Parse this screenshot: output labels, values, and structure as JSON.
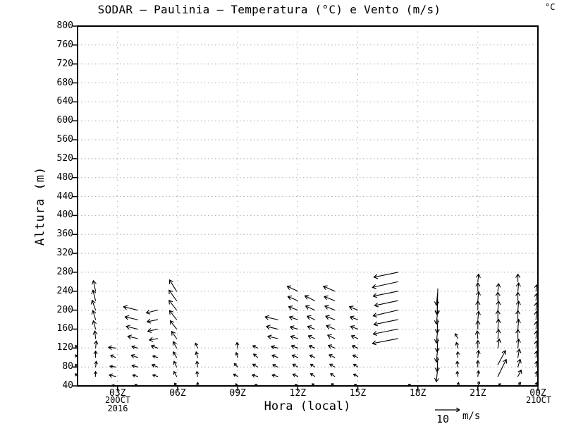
{
  "title": "SODAR – Paulinia – Temperatura (°C) e Vento (m/s)",
  "temperature_unit": "°C",
  "colors": {
    "background": "#ffffff",
    "foreground": "#000000",
    "grid": "#ababab"
  },
  "chart_data": {
    "type": "vector",
    "subtype": "time-height wind vector field (SODAR)",
    "xlabel": "Hora (local)",
    "ylabel": "Altura (m)",
    "x_range_hours": [
      1,
      24
    ],
    "ylim": [
      40,
      800
    ],
    "y_tick_step": 40,
    "grid": "dashed",
    "y_tick_labels": [
      "800",
      "760",
      "720",
      "680",
      "640",
      "600",
      "560",
      "520",
      "480",
      "440",
      "400",
      "360",
      "320",
      "280",
      "240",
      "200",
      "160",
      "120",
      "80",
      "40"
    ],
    "x_ticks": [
      {
        "label": "03Z",
        "hour": 3
      },
      {
        "label": "06Z",
        "hour": 6
      },
      {
        "label": "09Z",
        "hour": 9
      },
      {
        "label": "12Z",
        "hour": 12
      },
      {
        "label": "15Z",
        "hour": 15
      },
      {
        "label": "18Z",
        "hour": 18
      },
      {
        "label": "21Z",
        "hour": 21
      },
      {
        "label": "00Z",
        "hour": 24
      }
    ],
    "x_grid_hours": [
      3,
      6,
      9,
      12,
      15,
      18,
      21
    ],
    "start_date_line1": "20OCT",
    "start_date_line2": "2016",
    "end_date_label": "21OCT",
    "wind_unit": "m/s",
    "reference_arrow": {
      "value": "10",
      "unit": "m/s",
      "speed_ms": 10
    },
    "columns": [
      {
        "t": 1.0,
        "arrows": [
          [
            60,
            -0.9,
            1.1
          ],
          [
            80,
            -0.9,
            1.1
          ],
          [
            100,
            -0.9,
            1.1
          ],
          [
            120,
            -0.9,
            1.1
          ]
        ]
      },
      {
        "t": 1.9,
        "arrows": [
          [
            60,
            0,
            2.0
          ],
          [
            80,
            0.3,
            2.3
          ],
          [
            100,
            0,
            2.6
          ],
          [
            120,
            0.3,
            2.9
          ],
          [
            140,
            -0.3,
            3.1
          ],
          [
            160,
            -0.9,
            3.4
          ],
          [
            180,
            -1.1,
            3.7
          ],
          [
            200,
            -1.4,
            4.0
          ],
          [
            220,
            -1.1,
            4.3
          ],
          [
            240,
            -0.9,
            4.3
          ]
        ]
      },
      {
        "t": 2.9,
        "arrows": [
          [
            40,
            -1.4,
            0.3
          ],
          [
            60,
            -2.6,
            0.6
          ],
          [
            80,
            -2.3,
            0.3
          ],
          [
            100,
            -2.0,
            0.9
          ],
          [
            120,
            -2.9,
            0.3
          ]
        ]
      },
      {
        "t": 4.0,
        "arrows": [
          [
            40,
            -1.1,
            0.6
          ],
          [
            60,
            -2.0,
            0.6
          ],
          [
            80,
            -2.3,
            0.6
          ],
          [
            100,
            -2.6,
            0.9
          ],
          [
            120,
            -2.3,
            0.6
          ],
          [
            140,
            -4.0,
            0.9
          ],
          [
            160,
            -4.6,
            1.1
          ],
          [
            180,
            -5.1,
            1.1
          ],
          [
            200,
            -5.7,
            1.4
          ]
        ]
      },
      {
        "t": 5.0,
        "arrows": [
          [
            60,
            -2.0,
            0.6
          ],
          [
            80,
            -2.3,
            0.9
          ],
          [
            100,
            -2.0,
            0.6
          ],
          [
            120,
            -2.6,
            0.9
          ],
          [
            140,
            -3.4,
            -0.6
          ],
          [
            160,
            -4.0,
            -0.9
          ],
          [
            180,
            -4.3,
            -0.9
          ],
          [
            200,
            -4.6,
            -1.1
          ]
        ]
      },
      {
        "t": 5.95,
        "arrows": [
          [
            40,
            -0.9,
            1.1
          ],
          [
            60,
            -1.1,
            2.0
          ],
          [
            80,
            -1.1,
            2.3
          ],
          [
            100,
            -1.4,
            2.3
          ],
          [
            120,
            -1.4,
            2.6
          ],
          [
            140,
            -2.0,
            2.9
          ],
          [
            160,
            -2.6,
            3.4
          ],
          [
            180,
            -2.9,
            3.7
          ],
          [
            200,
            -3.1,
            4.0
          ],
          [
            220,
            -3.1,
            4.3
          ],
          [
            240,
            -2.9,
            4.6
          ]
        ]
      },
      {
        "t": 7.0,
        "arrows": [
          [
            40,
            0,
            1.4
          ],
          [
            60,
            -0.3,
            2.0
          ],
          [
            80,
            -0.3,
            2.3
          ],
          [
            100,
            -0.6,
            2.3
          ],
          [
            120,
            -0.9,
            2.0
          ]
        ]
      },
      {
        "t": 9.0,
        "arrows": [
          [
            40,
            -0.9,
            0.9
          ],
          [
            60,
            -1.7,
            0.9
          ],
          [
            80,
            -1.4,
            1.4
          ],
          [
            100,
            -0.6,
            2.0
          ],
          [
            120,
            -0.3,
            2.3
          ]
        ]
      },
      {
        "t": 10.0,
        "arrows": [
          [
            40,
            -1.1,
            0.6
          ],
          [
            60,
            -2.3,
            0.6
          ],
          [
            80,
            -2.0,
            1.1
          ],
          [
            100,
            -1.7,
            1.4
          ],
          [
            120,
            -2.0,
            0.9
          ]
        ]
      },
      {
        "t": 11.0,
        "arrows": [
          [
            60,
            -2.3,
            0.6
          ],
          [
            80,
            -2.0,
            0.9
          ],
          [
            100,
            -2.3,
            0.9
          ],
          [
            120,
            -2.6,
            0.6
          ],
          [
            140,
            -4.0,
            0.9
          ],
          [
            160,
            -4.6,
            1.1
          ],
          [
            180,
            -5.1,
            1.1
          ]
        ]
      },
      {
        "t": 12.0,
        "arrows": [
          [
            40,
            -1.1,
            0.6
          ],
          [
            60,
            -2.0,
            0.9
          ],
          [
            80,
            -2.0,
            1.1
          ],
          [
            100,
            -2.3,
            0.9
          ],
          [
            120,
            -2.6,
            0.9
          ],
          [
            140,
            -2.9,
            0.9
          ],
          [
            160,
            -3.1,
            0.9
          ],
          [
            180,
            -3.4,
            1.1
          ],
          [
            200,
            -3.7,
            1.4
          ],
          [
            220,
            -4.0,
            1.7
          ],
          [
            240,
            -4.3,
            2.0
          ]
        ]
      },
      {
        "t": 12.85,
        "arrows": [
          [
            40,
            -1.1,
            0.9
          ],
          [
            60,
            -1.7,
            1.1
          ],
          [
            80,
            -1.7,
            1.1
          ],
          [
            100,
            -2.0,
            0.9
          ],
          [
            120,
            -2.3,
            0.9
          ],
          [
            140,
            -2.6,
            1.1
          ],
          [
            160,
            -2.9,
            1.1
          ],
          [
            180,
            -3.1,
            1.4
          ],
          [
            200,
            -3.7,
            1.7
          ],
          [
            220,
            -4.0,
            2.0
          ]
        ]
      },
      {
        "t": 13.85,
        "arrows": [
          [
            40,
            -1.4,
            0.9
          ],
          [
            60,
            -1.7,
            1.1
          ],
          [
            80,
            -2.0,
            1.1
          ],
          [
            100,
            -2.3,
            1.1
          ],
          [
            120,
            -2.6,
            1.1
          ],
          [
            140,
            -2.9,
            1.4
          ],
          [
            160,
            -3.4,
            1.4
          ],
          [
            180,
            -3.7,
            1.4
          ],
          [
            200,
            -4.0,
            1.7
          ],
          [
            220,
            -4.3,
            1.7
          ],
          [
            240,
            -4.6,
            2.0
          ]
        ]
      },
      {
        "t": 15.0,
        "arrows": [
          [
            40,
            -1.4,
            0.6
          ],
          [
            60,
            -1.7,
            0.9
          ],
          [
            80,
            -1.7,
            1.1
          ],
          [
            100,
            -2.0,
            0.9
          ],
          [
            120,
            -2.3,
            0.9
          ],
          [
            140,
            -2.6,
            1.1
          ],
          [
            160,
            -2.9,
            1.1
          ],
          [
            180,
            -3.1,
            1.1
          ],
          [
            200,
            -3.4,
            1.4
          ]
        ]
      },
      {
        "t": 17.0,
        "arrows": [
          [
            140,
            -10.3,
            -2.0
          ],
          [
            160,
            -10.0,
            -2.0
          ],
          [
            180,
            -9.7,
            -2.0
          ],
          [
            200,
            -10.0,
            -2.3
          ],
          [
            220,
            -9.4,
            -2.0
          ],
          [
            240,
            -10.0,
            -2.0
          ],
          [
            260,
            -10.3,
            -2.3
          ],
          [
            280,
            -9.7,
            -2.0
          ]
        ]
      },
      {
        "t": 17.7,
        "arrows": [
          [
            40,
            -1.4,
            0.6
          ]
        ]
      },
      {
        "t": 19.0,
        "arrows": [
          [
            245,
            -0.3,
            -10.5
          ],
          [
            240,
            -0.6,
            -5.7
          ],
          [
            220,
            -0.3,
            -5.4
          ],
          [
            200,
            -0.6,
            -5.7
          ],
          [
            180,
            -0.3,
            -5.4
          ],
          [
            160,
            -0.6,
            -5.7
          ],
          [
            140,
            -0.3,
            -5.4
          ],
          [
            120,
            -0.6,
            -5.7
          ],
          [
            100,
            -0.3,
            -5.7
          ],
          [
            80,
            -0.6,
            -6.0
          ]
        ]
      },
      {
        "t": 20.0,
        "arrows": [
          [
            40,
            0.3,
            1.4
          ],
          [
            60,
            -0.3,
            2.0
          ],
          [
            80,
            -0.3,
            2.3
          ],
          [
            100,
            0,
            2.3
          ],
          [
            120,
            -0.6,
            2.3
          ],
          [
            140,
            -1.1,
            2.0
          ]
        ]
      },
      {
        "t": 21.0,
        "arrows": [
          [
            40,
            0.6,
            1.7
          ],
          [
            60,
            0.3,
            2.3
          ],
          [
            80,
            0,
            2.6
          ],
          [
            100,
            0.3,
            2.9
          ],
          [
            120,
            0,
            3.1
          ],
          [
            140,
            -0.3,
            3.1
          ],
          [
            160,
            0,
            3.4
          ],
          [
            180,
            0.3,
            3.4
          ],
          [
            200,
            0,
            3.7
          ],
          [
            220,
            0.3,
            3.7
          ],
          [
            240,
            0,
            3.4
          ],
          [
            260,
            0.3,
            3.1
          ]
        ]
      },
      {
        "t": 22.0,
        "arrows": [
          [
            40,
            1.1,
            0.9
          ],
          [
            60,
            3.4,
            6.9
          ],
          [
            85,
            3.1,
            5.7
          ],
          [
            120,
            0.6,
            3.7
          ],
          [
            140,
            0.3,
            3.7
          ],
          [
            160,
            0.3,
            4.0
          ],
          [
            180,
            0,
            3.7
          ],
          [
            200,
            0.3,
            3.7
          ],
          [
            220,
            0,
            3.4
          ],
          [
            240,
            0.3,
            3.1
          ]
        ]
      },
      {
        "t": 23.0,
        "arrows": [
          [
            40,
            1.1,
            1.4
          ],
          [
            60,
            1.4,
            2.6
          ],
          [
            80,
            0.9,
            3.1
          ],
          [
            100,
            0.6,
            3.4
          ],
          [
            120,
            0.3,
            3.7
          ],
          [
            140,
            0,
            3.7
          ],
          [
            160,
            0.3,
            4.0
          ],
          [
            180,
            0,
            3.7
          ],
          [
            200,
            0.3,
            3.7
          ],
          [
            220,
            0,
            3.4
          ],
          [
            240,
            0.3,
            3.4
          ],
          [
            260,
            0,
            3.1
          ]
        ]
      },
      {
        "t": 23.9,
        "arrows": [
          [
            40,
            0.3,
            1.4
          ],
          [
            60,
            0.3,
            2.0
          ],
          [
            80,
            0.3,
            2.3
          ],
          [
            100,
            0.3,
            2.6
          ],
          [
            120,
            0.3,
            2.9
          ],
          [
            140,
            0.3,
            3.1
          ],
          [
            160,
            0.3,
            3.1
          ],
          [
            180,
            0.3,
            3.4
          ],
          [
            200,
            0.3,
            3.1
          ],
          [
            220,
            0.3,
            2.9
          ],
          [
            240,
            0.3,
            2.6
          ]
        ]
      }
    ]
  }
}
